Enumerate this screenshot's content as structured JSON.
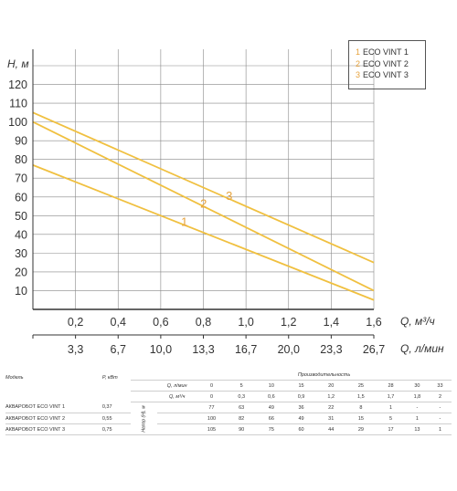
{
  "chart_data": {
    "type": "line",
    "ylabel": "H, м",
    "xlabel": "Q, м³/ч",
    "x2label": "Q, л/мин",
    "xlim": [
      0,
      1.6
    ],
    "ylim": [
      0,
      130
    ],
    "grid": true,
    "legend": "top-right",
    "y_ticks": [
      "10",
      "20",
      "30",
      "40",
      "50",
      "60",
      "70",
      "80",
      "90",
      "100",
      "110",
      "120"
    ],
    "x_ticks": [
      "0,2",
      "0,4",
      "0,6",
      "0,8",
      "1,0",
      "1,2",
      "1,4",
      "1,6"
    ],
    "x2_ticks": [
      "3,3",
      "6,7",
      "10,0",
      "13,3",
      "16,7",
      "20,0",
      "23,3",
      "26,7"
    ],
    "series": [
      {
        "name": "ECO VINT 1",
        "label": "1",
        "x": [
          0,
          1.6
        ],
        "y": [
          77,
          5
        ]
      },
      {
        "name": "ECO VINT 2",
        "label": "2",
        "x": [
          0,
          1.6
        ],
        "y": [
          100,
          10
        ]
      },
      {
        "name": "ECO VINT 3",
        "label": "3",
        "x": [
          0,
          1.6
        ],
        "y": [
          105,
          25
        ]
      }
    ],
    "series_color": "#f0c040",
    "label_color": "#e6a23c"
  },
  "legend": {
    "items": [
      {
        "num": "1",
        "name": "ECO VINT 1"
      },
      {
        "num": "2",
        "name": "ECO VINT 2"
      },
      {
        "num": "3",
        "name": "ECO VINT 3"
      }
    ]
  },
  "table": {
    "title": "Производительность",
    "col_model": "Модель",
    "col_power": "P, кВт",
    "q_lmin_label": "Q, л/мин",
    "q_m3h_label": "Q, м³/ч",
    "head_label": "Напор (H), м",
    "q_lmin": [
      "0",
      "5",
      "10",
      "15",
      "20",
      "25",
      "28",
      "30",
      "33"
    ],
    "q_m3h": [
      "0",
      "0,3",
      "0,6",
      "0,9",
      "1,2",
      "1,5",
      "1,7",
      "1,8",
      "2"
    ],
    "rows": [
      {
        "model": "АКВАРОБОТ ECO VINT 1",
        "power": "0,37",
        "values": [
          "77",
          "63",
          "49",
          "36",
          "22",
          "8",
          "1",
          "-",
          "-"
        ]
      },
      {
        "model": "АКВАРОБОТ ECO VINT 2",
        "power": "0,55",
        "values": [
          "100",
          "82",
          "66",
          "49",
          "31",
          "15",
          "5",
          "1",
          "-"
        ]
      },
      {
        "model": "АКВАРОБОТ ECO VINT 3",
        "power": "0,75",
        "values": [
          "105",
          "90",
          "75",
          "60",
          "44",
          "29",
          "17",
          "13",
          "1"
        ]
      }
    ]
  }
}
